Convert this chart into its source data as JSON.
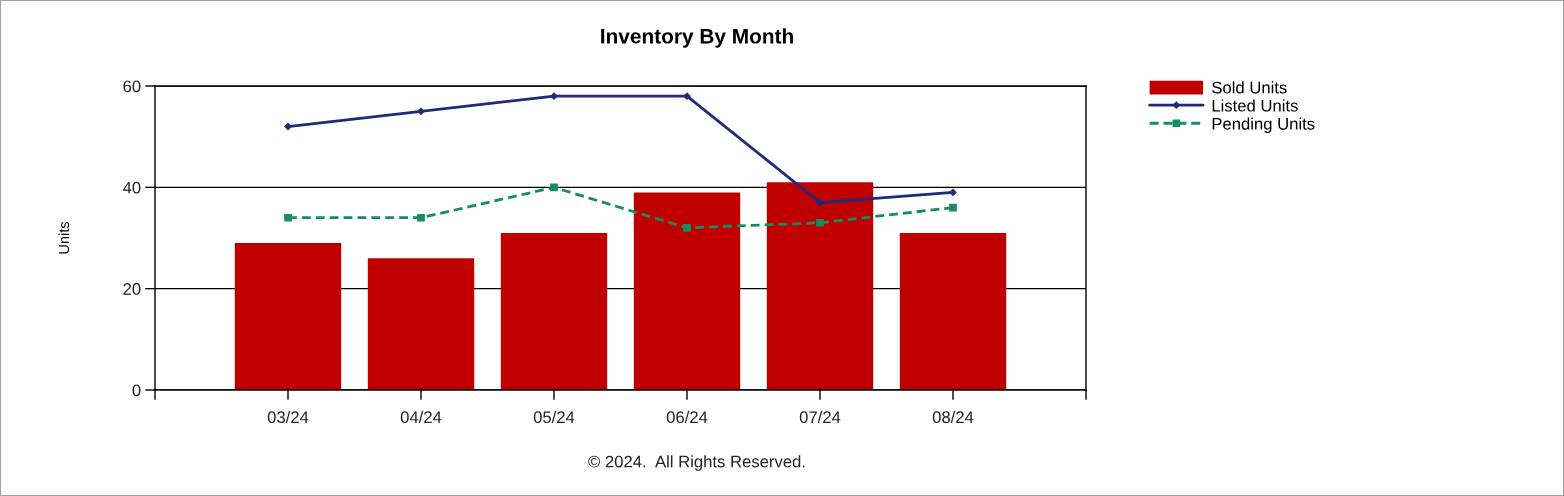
{
  "chart_data": {
    "type": "bar",
    "title": "Inventory By Month",
    "ylabel": "Units",
    "categories": [
      "03/24",
      "04/24",
      "05/24",
      "06/24",
      "07/24",
      "08/24"
    ],
    "series": [
      {
        "name": "Sold Units",
        "color": "#c00000",
        "values": [
          29,
          26,
          31,
          39,
          41,
          31
        ]
      },
      {
        "name": "Listed Units",
        "type": "line",
        "color": "#1f2b78",
        "marker": "diamond",
        "line_style": "solid",
        "values": [
          52,
          55,
          58,
          58,
          37,
          39
        ]
      },
      {
        "name": "Pending Units",
        "type": "line",
        "color": "#178a66",
        "marker": "square",
        "line_style": "dashed",
        "values": [
          34,
          34,
          40,
          32,
          33,
          36
        ]
      }
    ],
    "ylim": [
      0,
      60
    ],
    "yticks": [
      0,
      20,
      40,
      60
    ],
    "grid": "y",
    "legend": "top right",
    "annotations": [
      "© 2024.  All Rights Reserved."
    ]
  }
}
